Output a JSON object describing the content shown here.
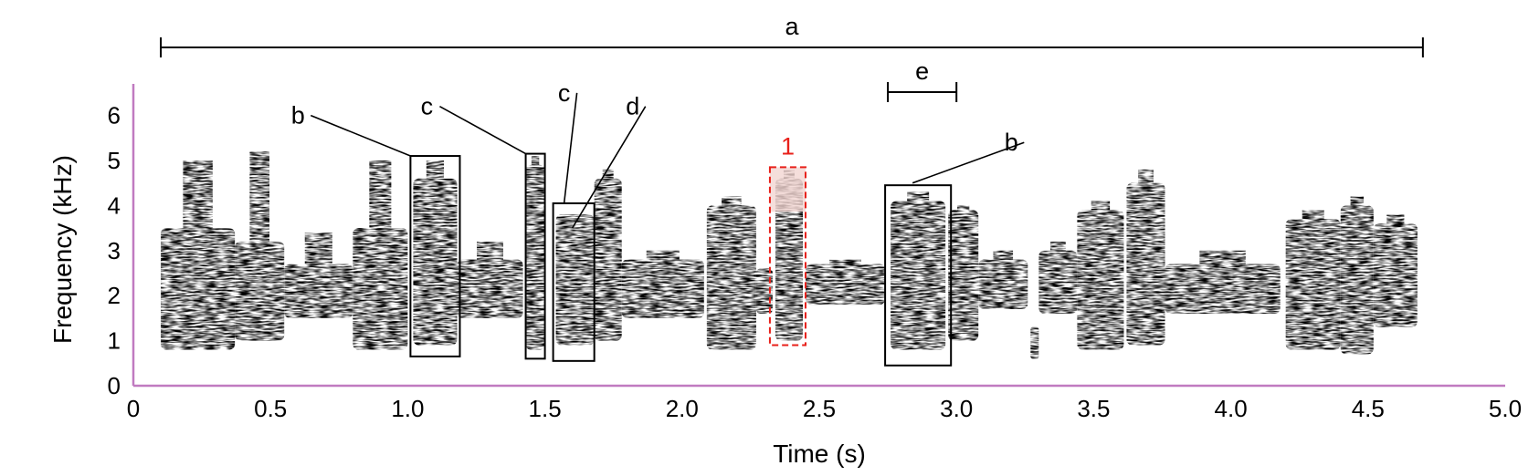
{
  "chart_data": {
    "type": "spectrogram",
    "xlabel": "Time (s)",
    "ylabel": "Frequency (kHz)",
    "xlim": [
      0,
      5.0
    ],
    "ylim": [
      0,
      6.7
    ],
    "xticks": [
      "0",
      "0.5",
      "1.0",
      "1.5",
      "2.0",
      "2.5",
      "3.0",
      "3.5",
      "4.0",
      "4.5",
      "5.0"
    ],
    "xtick_values": [
      0,
      0.5,
      1.0,
      1.5,
      2.0,
      2.5,
      3.0,
      3.5,
      4.0,
      4.5,
      5.0
    ],
    "yticks": [
      "0",
      "1",
      "2",
      "3",
      "4",
      "5",
      "6"
    ],
    "ytick_values": [
      0,
      1,
      2,
      3,
      4,
      5,
      6
    ],
    "colors": {
      "energy": "#000000",
      "highlight": "#e8201a",
      "highlight_fill": "#f2d6d2",
      "axis": "#c07ac0"
    },
    "span_a": {
      "label": "a",
      "t0": 0.1,
      "t1": 4.7
    },
    "span_e": {
      "label": "e",
      "t0": 2.75,
      "t1": 3.0
    },
    "boxes": [
      {
        "label": "b",
        "t0": 1.01,
        "t1": 1.19,
        "f0": 0.65,
        "f1": 5.1,
        "style": "solid"
      },
      {
        "label": "c",
        "t0": 1.43,
        "t1": 1.5,
        "f0": 0.6,
        "f1": 5.15,
        "style": "solid"
      },
      {
        "label": "",
        "t0": 1.53,
        "t1": 1.68,
        "f0": 0.55,
        "f1": 4.05,
        "style": "solid"
      },
      {
        "label": "1",
        "t0": 2.32,
        "t1": 2.45,
        "f0": 0.9,
        "f1": 4.85,
        "style": "dashed"
      },
      {
        "label": "b",
        "t0": 2.74,
        "t1": 2.98,
        "f0": 0.45,
        "f1": 4.45,
        "style": "solid"
      }
    ],
    "callouts": [
      {
        "label": "b",
        "label_t": 0.6,
        "label_f": 6.0,
        "t": 1.01,
        "f": 5.1
      },
      {
        "label": "c",
        "label_t": 1.07,
        "label_f": 6.2,
        "t": 1.43,
        "f": 5.15
      },
      {
        "label": "c",
        "label_t": 1.57,
        "label_f": 6.5,
        "t": 1.57,
        "f": 4.05
      },
      {
        "label": "d",
        "label_t": 1.82,
        "label_f": 6.2,
        "t": 1.6,
        "f": 3.5
      },
      {
        "label": "b",
        "label_t": 3.2,
        "label_f": 5.4,
        "t": 2.84,
        "f": 4.5
      }
    ],
    "blobs": [
      {
        "t0": 0.1,
        "t1": 0.37,
        "f0": 0.8,
        "f1": 3.5,
        "peak": 5.0
      },
      {
        "t0": 0.37,
        "t1": 0.55,
        "f0": 1.0,
        "f1": 3.2,
        "peak": 5.2
      },
      {
        "t0": 0.55,
        "t1": 0.8,
        "f0": 1.5,
        "f1": 2.7,
        "peak": 3.4
      },
      {
        "t0": 0.8,
        "t1": 1.0,
        "f0": 0.8,
        "f1": 3.5,
        "peak": 5.0
      },
      {
        "t0": 1.02,
        "t1": 1.18,
        "f0": 0.9,
        "f1": 4.6,
        "peak": 5.0
      },
      {
        "t0": 1.18,
        "t1": 1.42,
        "f0": 1.5,
        "f1": 2.8,
        "peak": 3.2
      },
      {
        "t0": 1.43,
        "t1": 1.5,
        "f0": 0.8,
        "f1": 4.9,
        "peak": 5.1
      },
      {
        "t0": 1.54,
        "t1": 1.68,
        "f0": 0.9,
        "f1": 3.8,
        "peak": 3.8
      },
      {
        "t0": 1.68,
        "t1": 1.78,
        "f0": 1.0,
        "f1": 4.6,
        "peak": 4.8
      },
      {
        "t0": 1.78,
        "t1": 2.08,
        "f0": 1.5,
        "f1": 2.8,
        "peak": 3.0
      },
      {
        "t0": 2.09,
        "t1": 2.27,
        "f0": 0.8,
        "f1": 4.0,
        "peak": 4.2
      },
      {
        "t0": 2.27,
        "t1": 2.33,
        "f0": 1.6,
        "f1": 2.6,
        "peak": 2.6
      },
      {
        "t0": 2.34,
        "t1": 2.44,
        "f0": 1.0,
        "f1": 4.6,
        "peak": 4.8
      },
      {
        "t0": 2.45,
        "t1": 2.74,
        "f0": 1.8,
        "f1": 2.7,
        "peak": 2.8
      },
      {
        "t0": 2.76,
        "t1": 2.96,
        "f0": 0.8,
        "f1": 4.1,
        "peak": 4.3
      },
      {
        "t0": 2.97,
        "t1": 3.08,
        "f0": 1.0,
        "f1": 3.9,
        "peak": 4.0
      },
      {
        "t0": 3.08,
        "t1": 3.26,
        "f0": 1.7,
        "f1": 2.8,
        "peak": 3.0
      },
      {
        "t0": 3.27,
        "t1": 3.3,
        "f0": 0.6,
        "f1": 1.3,
        "peak": 1.3
      },
      {
        "t0": 3.3,
        "t1": 3.44,
        "f0": 1.6,
        "f1": 3.0,
        "peak": 3.2
      },
      {
        "t0": 3.44,
        "t1": 3.61,
        "f0": 0.8,
        "f1": 3.9,
        "peak": 4.1
      },
      {
        "t0": 3.62,
        "t1": 3.76,
        "f0": 0.9,
        "f1": 4.5,
        "peak": 4.8
      },
      {
        "t0": 3.76,
        "t1": 4.18,
        "f0": 1.6,
        "f1": 2.7,
        "peak": 3.0
      },
      {
        "t0": 4.2,
        "t1": 4.4,
        "f0": 0.8,
        "f1": 3.7,
        "peak": 3.9
      },
      {
        "t0": 4.4,
        "t1": 4.52,
        "f0": 0.7,
        "f1": 4.0,
        "peak": 4.2
      },
      {
        "t0": 4.52,
        "t1": 4.68,
        "f0": 1.3,
        "f1": 3.6,
        "peak": 3.8
      }
    ]
  }
}
